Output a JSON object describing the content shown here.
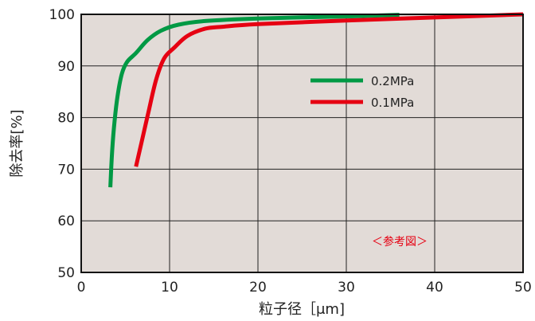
{
  "chart_data": {
    "type": "line",
    "title": "",
    "xlabel": "粒子径［μm]",
    "ylabel": "除去率[%]",
    "xlim": [
      0,
      50
    ],
    "ylim": [
      50,
      100
    ],
    "x_ticks": [
      0,
      10,
      20,
      30,
      40,
      50
    ],
    "y_ticks": [
      50,
      60,
      70,
      80,
      90,
      100
    ],
    "x_tick_labels": [
      "0",
      "10",
      "20",
      "30",
      "40",
      "50"
    ],
    "y_tick_labels": [
      "50",
      "60",
      "70",
      "80",
      "90",
      "100"
    ],
    "grid": true,
    "legend_position": "upper-right",
    "annotation": "＜参考図＞",
    "colors": {
      "plot_background": "#e2dbd7",
      "grid": "#222222",
      "series_green": "#009944",
      "series_red": "#e60012",
      "annotation": "#e60012"
    },
    "series": [
      {
        "name": "0.2MPa",
        "color": "#009944",
        "points": [
          [
            3.3,
            66.5
          ],
          [
            3.45,
            72
          ],
          [
            3.7,
            78
          ],
          [
            4.1,
            84
          ],
          [
            4.6,
            88.5
          ],
          [
            5.2,
            90.8
          ],
          [
            6.2,
            92.5
          ],
          [
            7.5,
            95
          ],
          [
            9,
            96.8
          ],
          [
            11,
            98
          ],
          [
            14,
            98.7
          ],
          [
            20,
            99.2
          ],
          [
            30,
            99.6
          ],
          [
            36,
            99.9
          ]
        ]
      },
      {
        "name": "0.1MPa",
        "color": "#e60012",
        "points": [
          [
            6.2,
            70.5
          ],
          [
            6.8,
            75
          ],
          [
            7.6,
            81
          ],
          [
            8.5,
            87.5
          ],
          [
            9.4,
            91.5
          ],
          [
            10.5,
            93.5
          ],
          [
            12,
            95.8
          ],
          [
            14,
            97.2
          ],
          [
            16,
            97.6
          ],
          [
            20,
            98.1
          ],
          [
            30,
            98.8
          ],
          [
            40,
            99.4
          ],
          [
            50,
            100
          ]
        ]
      }
    ]
  }
}
